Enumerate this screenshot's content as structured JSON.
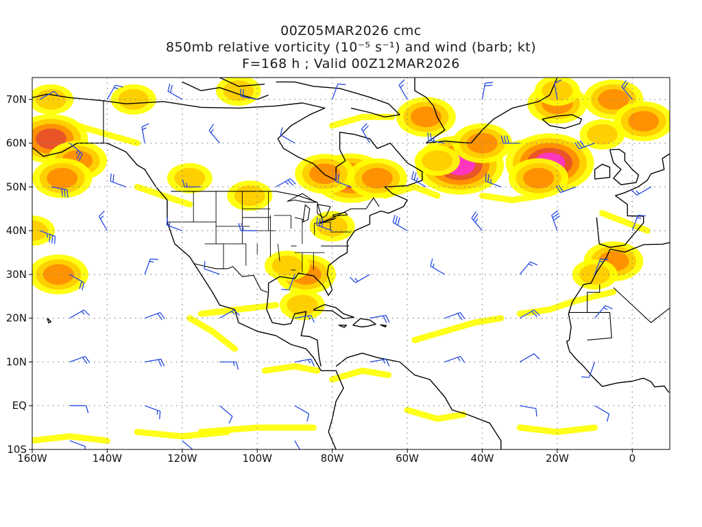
{
  "titles": {
    "line1": "00Z05MAR2026 cmc",
    "line2": "850mb relative vorticity (10⁻⁵ s⁻¹) and wind (barb; kt)",
    "line3": "F=168 h ; Valid 00Z12MAR2026"
  },
  "map": {
    "projection": "cylindrical-equidistant",
    "lon_range": [
      -160,
      10
    ],
    "lat_range": [
      -10,
      75
    ],
    "lat_ticks": [
      {
        "value": 70,
        "label": "70N"
      },
      {
        "value": 60,
        "label": "60N"
      },
      {
        "value": 50,
        "label": "50N"
      },
      {
        "value": 40,
        "label": "40N"
      },
      {
        "value": 30,
        "label": "30N"
      },
      {
        "value": 20,
        "label": "20N"
      },
      {
        "value": 10,
        "label": "10N"
      },
      {
        "value": 0,
        "label": "EQ"
      },
      {
        "value": -10,
        "label": "10S"
      }
    ],
    "lon_ticks": [
      {
        "value": -160,
        "label": "160W"
      },
      {
        "value": -140,
        "label": "140W"
      },
      {
        "value": -120,
        "label": "120W"
      },
      {
        "value": -100,
        "label": "100W"
      },
      {
        "value": -80,
        "label": "80W"
      },
      {
        "value": -60,
        "label": "60W"
      },
      {
        "value": -40,
        "label": "40W"
      },
      {
        "value": -20,
        "label": "20W"
      },
      {
        "value": 0,
        "label": "0"
      }
    ],
    "gridlines": "dotted",
    "colors": {
      "low_vorticity": "#ffff00",
      "mid_vorticity": "#ffcc00",
      "high_vorticity": "#ff8c00",
      "very_high_vorticity": "#e8502a",
      "extreme_vorticity": "#ff33cc",
      "wind_barbs": "#2448e0",
      "coastlines": "#000000",
      "grid": "#888888"
    },
    "vorticity_features": [
      {
        "lon": -75,
        "lat": 52,
        "level": 4
      },
      {
        "lon": -82,
        "lat": 53,
        "level": 3
      },
      {
        "lon": -68,
        "lat": 52,
        "level": 3
      },
      {
        "lon": -46,
        "lat": 55,
        "level": 5
      },
      {
        "lon": -22,
        "lat": 55.5,
        "level": 5
      },
      {
        "lon": -25,
        "lat": 52,
        "level": 3
      },
      {
        "lon": -155,
        "lat": 61,
        "level": 4
      },
      {
        "lon": -148,
        "lat": 56,
        "level": 3
      },
      {
        "lon": -152,
        "lat": 52,
        "level": 3
      },
      {
        "lon": -55,
        "lat": 66,
        "level": 3
      },
      {
        "lon": -20,
        "lat": 69,
        "level": 3
      },
      {
        "lon": -5,
        "lat": 70,
        "level": 3
      },
      {
        "lon": -40,
        "lat": 60,
        "level": 3
      },
      {
        "lon": 3,
        "lat": 65,
        "level": 3
      },
      {
        "lon": -87,
        "lat": 30,
        "level": 3
      },
      {
        "lon": -153,
        "lat": 30,
        "level": 3
      },
      {
        "lon": -5,
        "lat": 33,
        "level": 3
      },
      {
        "lon": -155,
        "lat": 70,
        "level": 2
      },
      {
        "lon": -133,
        "lat": 70,
        "level": 2
      },
      {
        "lon": -105,
        "lat": 72,
        "level": 2
      },
      {
        "lon": -80,
        "lat": 41,
        "level": 2
      },
      {
        "lon": -92,
        "lat": 32,
        "level": 2
      },
      {
        "lon": -88,
        "lat": 23,
        "level": 2
      },
      {
        "lon": -10,
        "lat": 30,
        "level": 2
      },
      {
        "lon": -118,
        "lat": 52,
        "level": 2
      },
      {
        "lon": -102,
        "lat": 48,
        "level": 2
      },
      {
        "lon": -160,
        "lat": 40,
        "level": 2
      },
      {
        "lon": -20,
        "lat": 72,
        "level": 2
      },
      {
        "lon": -52,
        "lat": 56,
        "level": 2
      },
      {
        "lon": -8,
        "lat": 62,
        "level": 2
      }
    ],
    "vorticity_bands": [
      {
        "points": [
          [
            -30,
            21
          ],
          [
            -22,
            22
          ],
          [
            -15,
            24
          ],
          [
            -10,
            25
          ],
          [
            -5,
            26
          ]
        ],
        "level": 1
      },
      {
        "points": [
          [
            -58,
            15
          ],
          [
            -50,
            17
          ],
          [
            -42,
            19
          ],
          [
            -35,
            20
          ]
        ],
        "level": 1
      },
      {
        "points": [
          [
            -115,
            21
          ],
          [
            -105,
            22
          ],
          [
            -95,
            23
          ]
        ],
        "level": 1
      },
      {
        "points": [
          [
            -80,
            6
          ],
          [
            -72,
            8
          ],
          [
            -65,
            7
          ]
        ],
        "level": 1
      },
      {
        "points": [
          [
            -132,
            -6
          ],
          [
            -120,
            -7
          ],
          [
            -108,
            -6
          ]
        ],
        "level": 1
      },
      {
        "points": [
          [
            -115,
            -6
          ],
          [
            -100,
            -5
          ],
          [
            -85,
            -5
          ]
        ],
        "level": 1
      },
      {
        "points": [
          [
            -60,
            -1
          ],
          [
            -52,
            -3
          ],
          [
            -45,
            -2
          ]
        ],
        "level": 1
      },
      {
        "points": [
          [
            -30,
            -5
          ],
          [
            -20,
            -6
          ],
          [
            -10,
            -5
          ]
        ],
        "level": 1
      },
      {
        "points": [
          [
            -160,
            -8
          ],
          [
            -150,
            -7
          ],
          [
            -140,
            -8
          ]
        ],
        "level": 1
      },
      {
        "points": [
          [
            -118,
            20
          ],
          [
            -112,
            17
          ],
          [
            -106,
            13
          ]
        ],
        "level": 1
      },
      {
        "points": [
          [
            -98,
            8
          ],
          [
            -90,
            9
          ],
          [
            -84,
            8
          ]
        ],
        "level": 1
      },
      {
        "points": [
          [
            -66,
            48
          ],
          [
            -58,
            50
          ],
          [
            -52,
            48
          ]
        ],
        "level": 1
      },
      {
        "points": [
          [
            -40,
            48
          ],
          [
            -32,
            47
          ],
          [
            -24,
            48
          ]
        ],
        "level": 1
      },
      {
        "points": [
          [
            -38,
            58
          ],
          [
            -30,
            60
          ],
          [
            -22,
            60
          ]
        ],
        "level": 1
      },
      {
        "points": [
          [
            -80,
            64
          ],
          [
            -72,
            66
          ],
          [
            -64,
            66
          ]
        ],
        "level": 1
      },
      {
        "points": [
          [
            -8,
            44
          ],
          [
            -2,
            42
          ],
          [
            4,
            40
          ]
        ],
        "level": 1
      },
      {
        "points": [
          [
            -148,
            64
          ],
          [
            -140,
            62
          ],
          [
            -132,
            60
          ]
        ],
        "level": 1
      },
      {
        "points": [
          [
            -132,
            50
          ],
          [
            -125,
            48
          ],
          [
            -118,
            46
          ]
        ],
        "level": 1
      }
    ],
    "wind_barbs_note": "wind barbs in knots",
    "wind_barbs": [
      {
        "lon": -158,
        "lat": 70,
        "dir": 60,
        "speed": 10
      },
      {
        "lon": -140,
        "lat": 70,
        "dir": 30,
        "speed": 15
      },
      {
        "lon": -120,
        "lat": 70,
        "dir": 300,
        "speed": 20
      },
      {
        "lon": -100,
        "lat": 70,
        "dir": 280,
        "speed": 20
      },
      {
        "lon": -80,
        "lat": 70,
        "dir": 20,
        "speed": 10
      },
      {
        "lon": -60,
        "lat": 70,
        "dir": 330,
        "speed": 15
      },
      {
        "lon": -40,
        "lat": 70,
        "dir": 10,
        "speed": 20
      },
      {
        "lon": -20,
        "lat": 70,
        "dir": 350,
        "speed": 10
      },
      {
        "lon": 0,
        "lat": 70,
        "dir": 320,
        "speed": 20
      },
      {
        "lon": -150,
        "lat": 60,
        "dir": 130,
        "speed": 25
      },
      {
        "lon": -130,
        "lat": 60,
        "dir": 350,
        "speed": 15
      },
      {
        "lon": -110,
        "lat": 60,
        "dir": 320,
        "speed": 15
      },
      {
        "lon": -90,
        "lat": 60,
        "dir": 300,
        "speed": 10
      },
      {
        "lon": -70,
        "lat": 60,
        "dir": 330,
        "speed": 20
      },
      {
        "lon": -50,
        "lat": 60,
        "dir": 280,
        "speed": 25
      },
      {
        "lon": -30,
        "lat": 60,
        "dir": 270,
        "speed": 30
      },
      {
        "lon": -10,
        "lat": 60,
        "dir": 250,
        "speed": 30
      },
      {
        "lon": -155,
        "lat": 50,
        "dir": 100,
        "speed": 30
      },
      {
        "lon": -135,
        "lat": 50,
        "dir": 290,
        "speed": 20
      },
      {
        "lon": -115,
        "lat": 50,
        "dir": 270,
        "speed": 15
      },
      {
        "lon": -95,
        "lat": 50,
        "dir": 60,
        "speed": 25
      },
      {
        "lon": -75,
        "lat": 50,
        "dir": 290,
        "speed": 20
      },
      {
        "lon": -55,
        "lat": 50,
        "dir": 300,
        "speed": 25
      },
      {
        "lon": -35,
        "lat": 50,
        "dir": 290,
        "speed": 25
      },
      {
        "lon": -15,
        "lat": 50,
        "dir": 250,
        "speed": 20
      },
      {
        "lon": 5,
        "lat": 50,
        "dir": 240,
        "speed": 15
      },
      {
        "lon": -158,
        "lat": 40,
        "dir": 110,
        "speed": 35
      },
      {
        "lon": -140,
        "lat": 40,
        "dir": 330,
        "speed": 15
      },
      {
        "lon": -120,
        "lat": 40,
        "dir": 290,
        "speed": 15
      },
      {
        "lon": -100,
        "lat": 40,
        "dir": 270,
        "speed": 20
      },
      {
        "lon": -80,
        "lat": 40,
        "dir": 290,
        "speed": 30
      },
      {
        "lon": -60,
        "lat": 40,
        "dir": 300,
        "speed": 30
      },
      {
        "lon": -40,
        "lat": 40,
        "dir": 320,
        "speed": 25
      },
      {
        "lon": -20,
        "lat": 40,
        "dir": 340,
        "speed": 30
      },
      {
        "lon": 0,
        "lat": 40,
        "dir": 20,
        "speed": 15
      },
      {
        "lon": -150,
        "lat": 30,
        "dir": 120,
        "speed": 20
      },
      {
        "lon": -130,
        "lat": 30,
        "dir": 20,
        "speed": 15
      },
      {
        "lon": -110,
        "lat": 30,
        "dir": 290,
        "speed": 10
      },
      {
        "lon": -90,
        "lat": 30,
        "dir": 200,
        "speed": 10
      },
      {
        "lon": -70,
        "lat": 30,
        "dir": 240,
        "speed": 15
      },
      {
        "lon": -50,
        "lat": 30,
        "dir": 300,
        "speed": 15
      },
      {
        "lon": -30,
        "lat": 30,
        "dir": 40,
        "speed": 15
      },
      {
        "lon": -10,
        "lat": 30,
        "dir": 20,
        "speed": 15
      },
      {
        "lon": -150,
        "lat": 20,
        "dir": 60,
        "speed": 15
      },
      {
        "lon": -130,
        "lat": 20,
        "dir": 70,
        "speed": 20
      },
      {
        "lon": -110,
        "lat": 20,
        "dir": 60,
        "speed": 15
      },
      {
        "lon": -90,
        "lat": 20,
        "dir": 80,
        "speed": 15
      },
      {
        "lon": -70,
        "lat": 20,
        "dir": 80,
        "speed": 20
      },
      {
        "lon": -50,
        "lat": 20,
        "dir": 70,
        "speed": 20
      },
      {
        "lon": -30,
        "lat": 20,
        "dir": 60,
        "speed": 20
      },
      {
        "lon": -10,
        "lat": 20,
        "dir": 40,
        "speed": 15
      },
      {
        "lon": -150,
        "lat": 10,
        "dir": 70,
        "speed": 20
      },
      {
        "lon": -130,
        "lat": 10,
        "dir": 80,
        "speed": 20
      },
      {
        "lon": -110,
        "lat": 10,
        "dir": 90,
        "speed": 15
      },
      {
        "lon": -90,
        "lat": 10,
        "dir": 80,
        "speed": 15
      },
      {
        "lon": -70,
        "lat": 10,
        "dir": 80,
        "speed": 15
      },
      {
        "lon": -50,
        "lat": 10,
        "dir": 70,
        "speed": 15
      },
      {
        "lon": -30,
        "lat": 10,
        "dir": 60,
        "speed": 10
      },
      {
        "lon": -10,
        "lat": 10,
        "dir": 200,
        "speed": 10
      },
      {
        "lon": -150,
        "lat": 0,
        "dir": 90,
        "speed": 10
      },
      {
        "lon": -130,
        "lat": 0,
        "dir": 110,
        "speed": 15
      },
      {
        "lon": -110,
        "lat": 0,
        "dir": 130,
        "speed": 10
      },
      {
        "lon": -90,
        "lat": 0,
        "dir": 120,
        "speed": 10
      },
      {
        "lon": -30,
        "lat": 0,
        "dir": 100,
        "speed": 10
      },
      {
        "lon": -10,
        "lat": 0,
        "dir": 120,
        "speed": 10
      },
      {
        "lon": -150,
        "lat": -8,
        "dir": 110,
        "speed": 10
      },
      {
        "lon": -120,
        "lat": -8,
        "dir": 130,
        "speed": 10
      },
      {
        "lon": -90,
        "lat": -8,
        "dir": 150,
        "speed": 10
      }
    ]
  }
}
